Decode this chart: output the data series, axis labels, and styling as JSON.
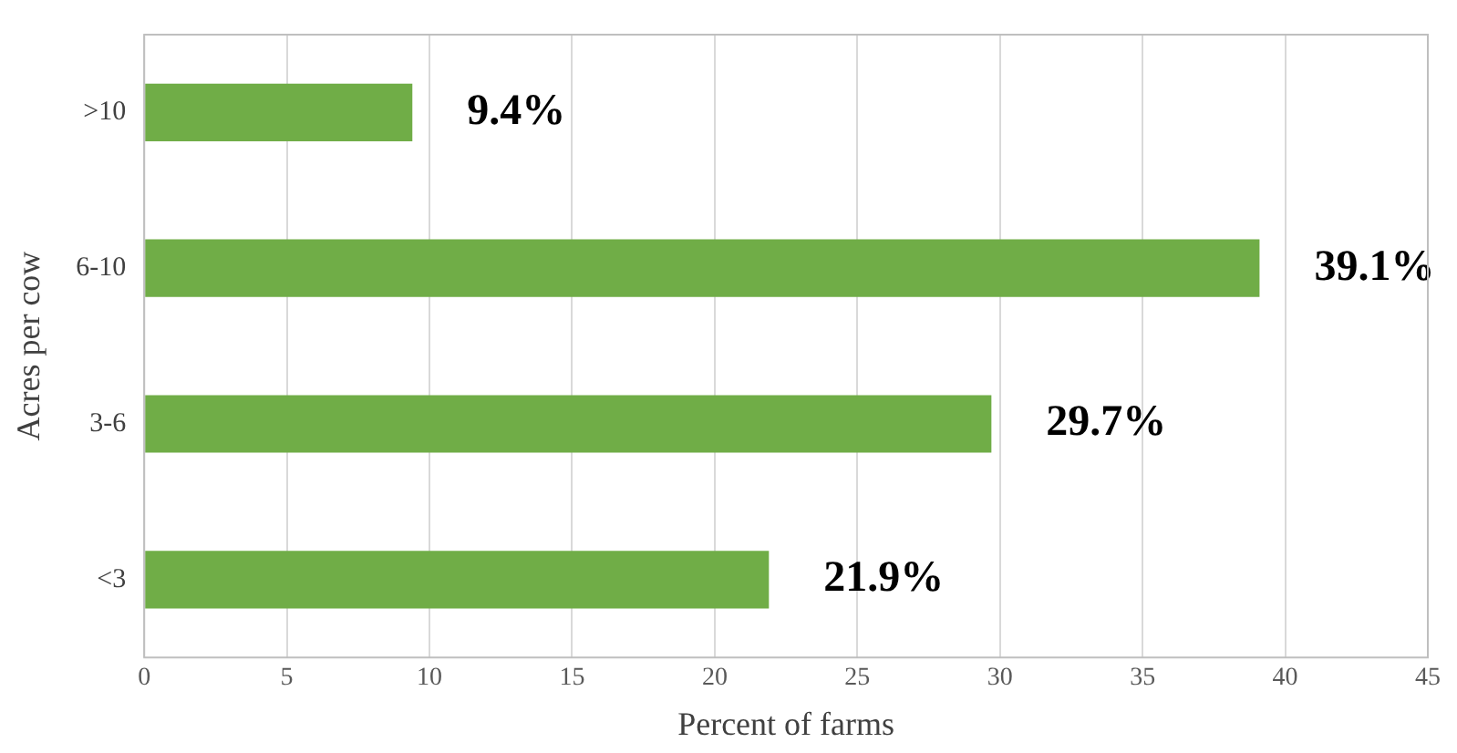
{
  "chart_data": {
    "type": "bar",
    "orientation": "horizontal",
    "xlabel": "Percent of farms",
    "ylabel": "Acres per cow",
    "categories": [
      ">10",
      "6-10",
      "3-6",
      "<3"
    ],
    "values": [
      9.4,
      39.1,
      29.7,
      21.9
    ],
    "value_labels": [
      "9.4%",
      "39.1%",
      "29.7%",
      "21.9%"
    ],
    "color": "#70ad47",
    "xlim": [
      0,
      45
    ],
    "xticks": [
      0,
      5,
      10,
      15,
      20,
      25,
      30,
      35,
      40,
      45
    ],
    "grid": "x",
    "legend": false
  }
}
